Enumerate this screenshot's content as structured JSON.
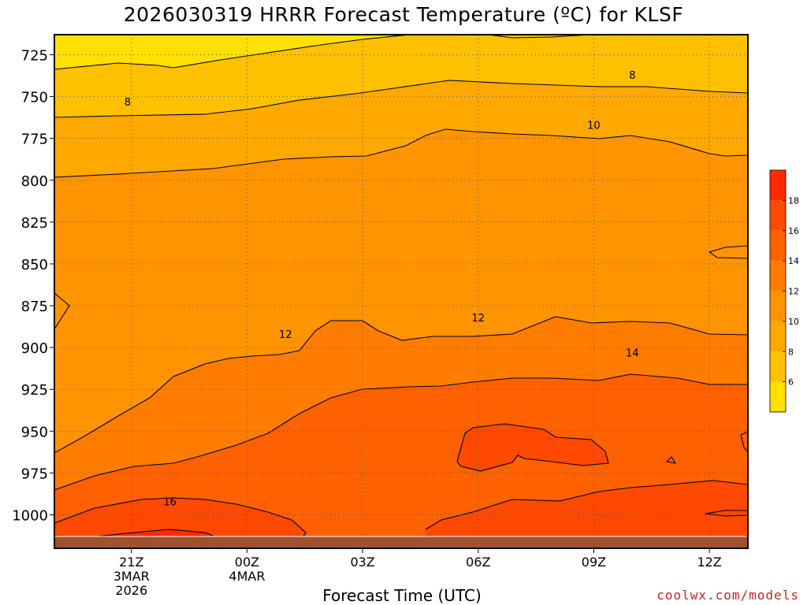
{
  "chart_data": {
    "type": "heatmap",
    "title": "2026030319 HRRR Forecast Temperature (ºC) for KLSF",
    "xlabel": "Forecast Time (UTC)",
    "ylabel": "",
    "credit": "coolwx.com/models",
    "y_axis": {
      "unit": "pressure level (mb)",
      "inverted": true,
      "ticks": [
        725,
        750,
        775,
        800,
        825,
        850,
        875,
        900,
        925,
        950,
        975,
        1000
      ],
      "range": [
        713,
        1020
      ]
    },
    "x_axis": {
      "range_hours": [
        19,
        13
      ],
      "ticks": [
        {
          "label": "21Z",
          "sub": "3MAR",
          "sub2": "2026",
          "hour": 21
        },
        {
          "label": "00Z",
          "sub": "4MAR",
          "sub2": "",
          "hour": 24
        },
        {
          "label": "03Z",
          "sub": "",
          "sub2": "",
          "hour": 27
        },
        {
          "label": "06Z",
          "sub": "",
          "sub2": "",
          "hour": 30
        },
        {
          "label": "09Z",
          "sub": "",
          "sub2": "",
          "hour": 33
        },
        {
          "label": "12Z",
          "sub": "",
          "sub2": "",
          "hour": 36
        }
      ]
    },
    "grid": true,
    "colorbar": {
      "levels": [
        4,
        6,
        8,
        10,
        12,
        14,
        16,
        18,
        20
      ],
      "labels": [
        "6",
        "8",
        "10",
        "12",
        "14",
        "16",
        "18"
      ],
      "colors": [
        "#ffe000",
        "#ffc000",
        "#ffa800",
        "#ff9400",
        "#ff7c00",
        "#ff6000",
        "#ff4800",
        "#ff2a00"
      ]
    },
    "contour_labels": [
      {
        "text": "8",
        "hour": 20.9,
        "mb": 753
      },
      {
        "text": "8",
        "hour": 34.0,
        "mb": 737
      },
      {
        "text": "10",
        "hour": 33.0,
        "mb": 767
      },
      {
        "text": "12",
        "hour": 25.0,
        "mb": 892
      },
      {
        "text": "12",
        "hour": 30.0,
        "mb": 882
      },
      {
        "text": "14",
        "hour": 34.0,
        "mb": 903
      },
      {
        "text": "16",
        "hour": 22.0,
        "mb": 992
      }
    ],
    "surface_pressure_mb": 1009
  }
}
